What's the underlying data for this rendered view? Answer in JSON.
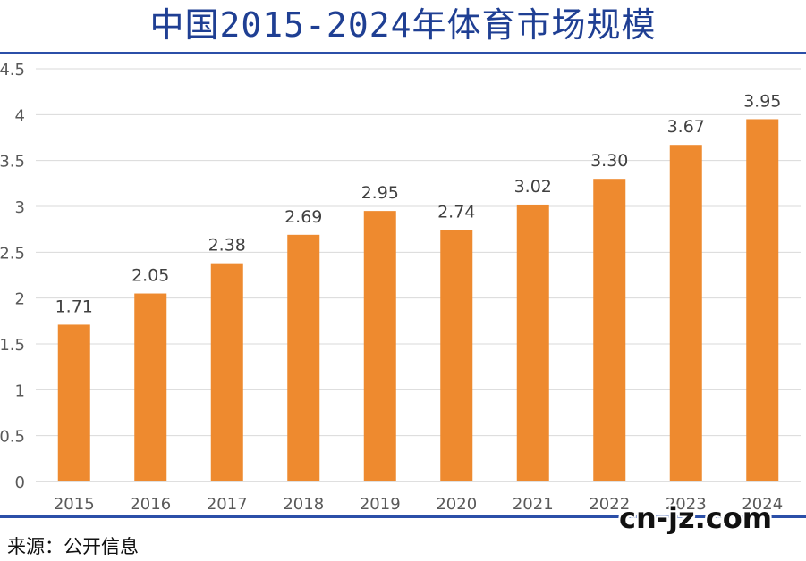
{
  "title": "中国2015-2024年体育市场规模",
  "source": "来源：公开信息",
  "watermark": "cn-jz.com",
  "colors": {
    "bar": "#ee8a2f",
    "title": "#1f3f93",
    "rule": "#2b4fa8",
    "grid": "#d9d9d9"
  },
  "chart_data": {
    "type": "bar",
    "categories": [
      "2015",
      "2016",
      "2017",
      "2018",
      "2019",
      "2020",
      "2021",
      "2022",
      "2023",
      "2024"
    ],
    "values": [
      1.71,
      2.05,
      2.38,
      2.69,
      2.95,
      2.74,
      3.02,
      3.3,
      3.67,
      3.95
    ],
    "data_labels": [
      "1.71",
      "2.05",
      "2.38",
      "2.69",
      "2.95",
      "2.74",
      "3.02",
      "3.30",
      "3.67",
      "3.95"
    ],
    "y_ticks": [
      "0",
      "0.5",
      "1",
      "1.5",
      "2",
      "2.5",
      "3",
      "3.5",
      "4",
      "4.5"
    ],
    "ylim": [
      0,
      4.5
    ],
    "grid": true,
    "legend": "none"
  }
}
